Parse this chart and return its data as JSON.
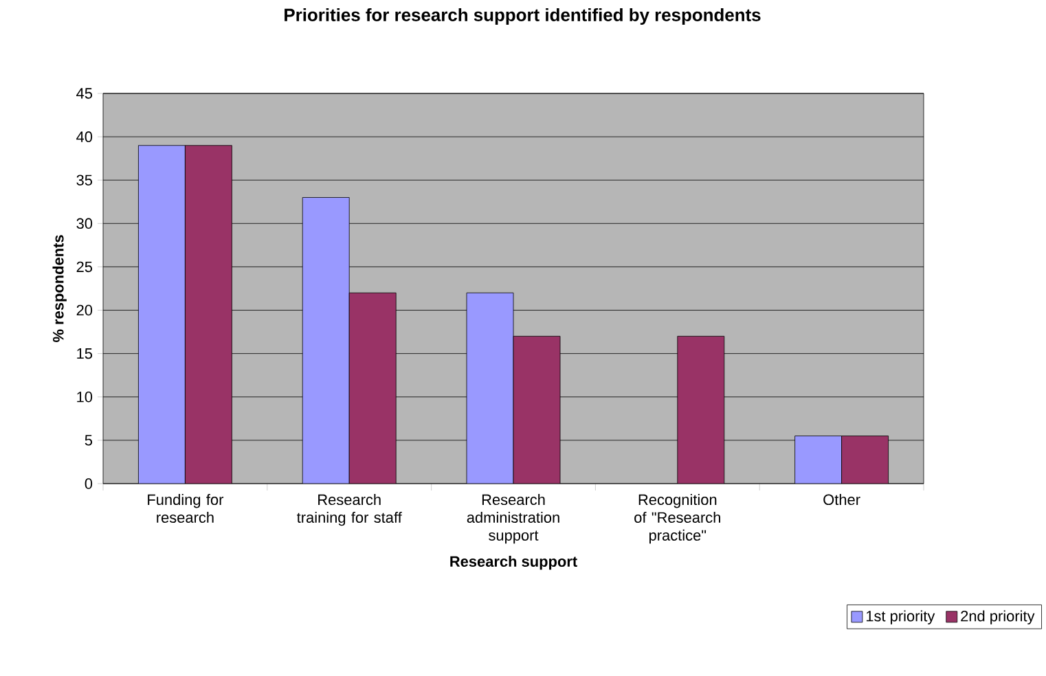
{
  "chart_data": {
    "type": "bar",
    "title": "Priorities for research support identified by respondents",
    "xlabel": "Research support",
    "ylabel": "% respondents",
    "categories": [
      "Funding for research",
      "Research training for staff",
      "Research administration support",
      "Recognition of \"Research practice\"",
      "Other"
    ],
    "series": [
      {
        "name": "1st priority",
        "color": "#9999ff",
        "values": [
          39,
          33,
          22,
          null,
          5.5
        ]
      },
      {
        "name": "2nd priority",
        "color": "#993366",
        "values": [
          39,
          22,
          17,
          17,
          5.5
        ]
      }
    ],
    "ylim": [
      0,
      45
    ],
    "yticks": [
      0,
      5,
      10,
      15,
      20,
      25,
      30,
      35,
      40,
      45
    ],
    "grid": "y",
    "legend": "bottom right"
  }
}
